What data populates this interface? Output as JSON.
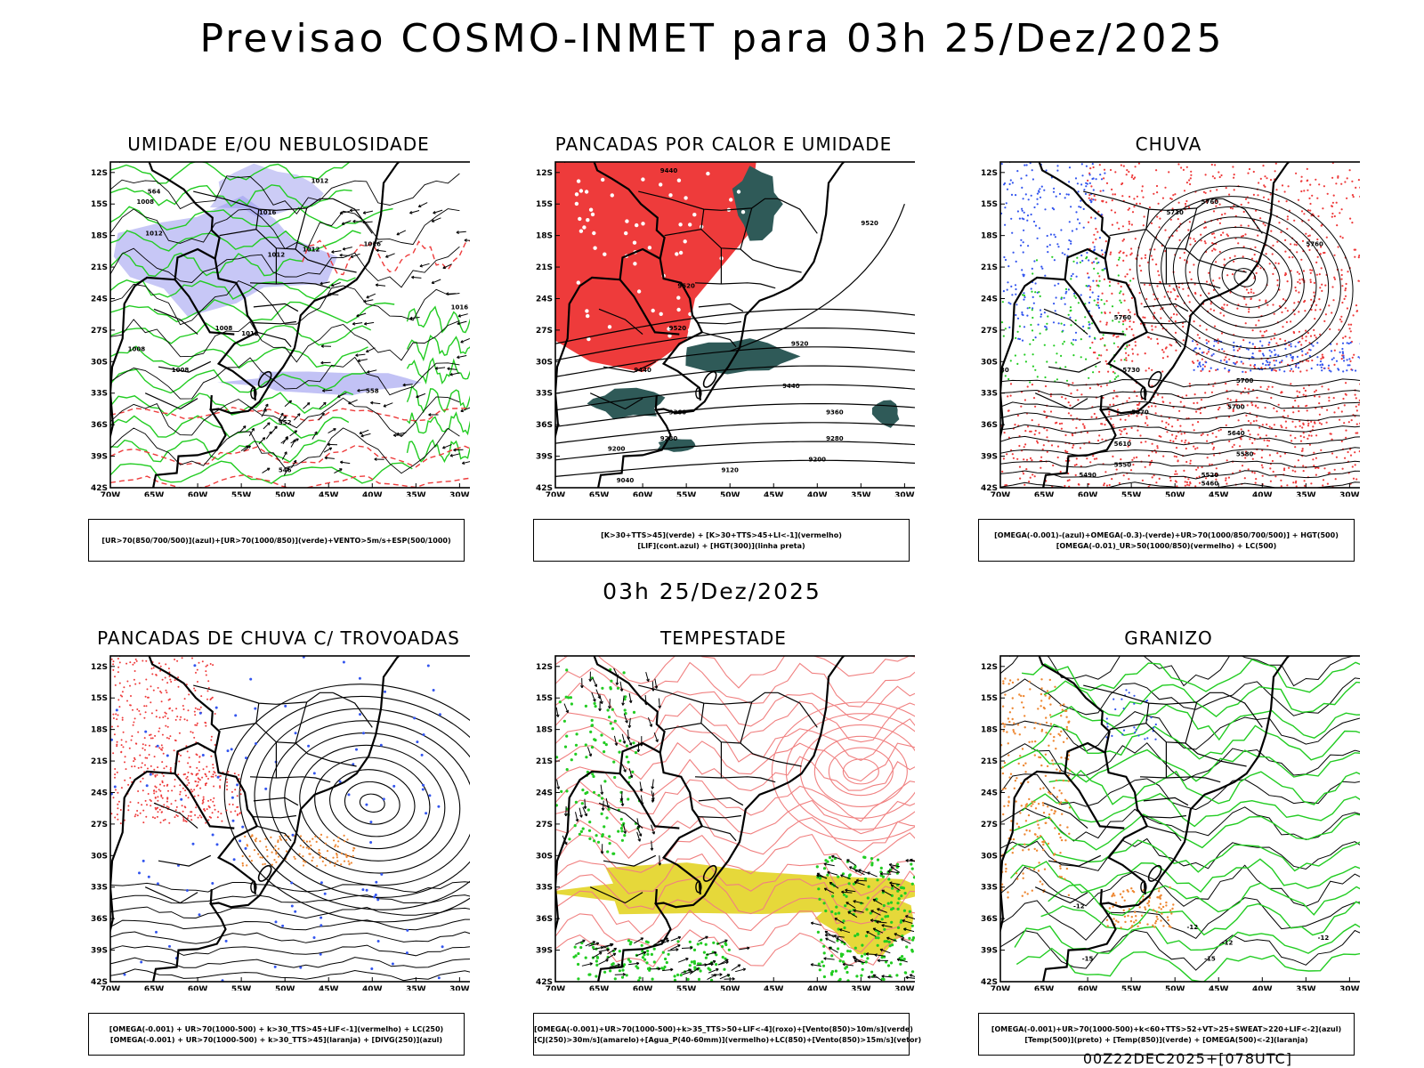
{
  "header": {
    "title": "Previsao COSMO-INMET  para 03h 25/Dez/2025",
    "mid_date": "03h 25/Dez/2025",
    "footer": "00Z22DEC2025+[078UTC]"
  },
  "axes": {
    "lat_labels": [
      "12S",
      "15S",
      "18S",
      "21S",
      "24S",
      "27S",
      "30S",
      "33S",
      "36S",
      "39S",
      "42S"
    ],
    "lon_labels": [
      "70W",
      "65W",
      "60W",
      "55W",
      "50W",
      "45W",
      "40W",
      "35W",
      "30W"
    ]
  },
  "colors": {
    "red": "#ee3b3b",
    "green": "#22cc22",
    "blue": "#3355ee",
    "lavender": "#9999ee",
    "darkteal": "#2f5a58",
    "yellow": "#e6d83a",
    "orange": "#ee8833",
    "pink": "#f08080"
  },
  "panels": [
    {
      "id": "umidade",
      "title": "UMIDADE E/OU NEBULOSIDADE",
      "legend": [
        "[UR>70(850/700/500)](azul)+[UR>70(1000/850)](verde)+VENTO>5m/s+ESP(500/1000)"
      ],
      "contour_labels": [
        "1012",
        "1008",
        "1012",
        "1016",
        "1012",
        "1008",
        "1016",
        "1012",
        "1008",
        "1008",
        "1012",
        "1016",
        "564",
        "558",
        "552",
        "546"
      ]
    },
    {
      "id": "pancadas-calor",
      "title": "PANCADAS POR CALOR E UMIDADE",
      "legend": [
        "[K>30+TTS>45](verde) + [K>30+TTS>45+LI<-1](vermelho)",
        "[LIF](cont.azul) + [HGT(300)](linha preta)"
      ],
      "contour_labels": [
        "9440",
        "9520",
        "9520",
        "9520",
        "9520",
        "9440",
        "9440",
        "9360",
        "9360",
        "9280",
        "9280",
        "9200",
        "9200",
        "9120",
        "9040"
      ]
    },
    {
      "id": "chuva",
      "title": "CHUVA",
      "legend": [
        "[OMEGA(-0.001)-(azul)+OMEGA(-0.3)-(verde)+UR>70(1000/850/700/500)] + HGT(500)",
        "[OMEGA(-0.01)_UR>50(1000/850)(vermelho) + LC(500)"
      ],
      "contour_labels": [
        "5730",
        "5760",
        "5760",
        "5760",
        "5730",
        "5730",
        "5700",
        "5700",
        "5670",
        "5640",
        "5610",
        "5580",
        "5550",
        "5520",
        "5490",
        "5460"
      ]
    },
    {
      "id": "trovoadas",
      "title": "PANCADAS DE CHUVA C/ TROVOADAS",
      "legend": [
        "[OMEGA(-0.001) + UR>70(1000-500) + k>30_TTS>45+LIF<-1](vermelho) + LC(250)",
        "[OMEGA(-0.001) + UR>70(1000-500) + k>30_TTS>45](laranja) + [DIVG(250)](azul)"
      ],
      "contour_labels": []
    },
    {
      "id": "tempestade",
      "title": "TEMPESTADE",
      "legend": [
        "[OMEGA(-0.001)+UR>70(1000-500)+k>35_TTS>50+LIF<-4](roxo)+[Vento(850)>10m/s](verde)",
        "[CJ(250)>30m/s](amarelo)+[Agua_P(40-60mm)](vermelho)+LC(850)+[Vento(850)>15m/s](vetor)"
      ],
      "contour_labels": []
    },
    {
      "id": "granizo",
      "title": "GRANIZO",
      "legend": [
        "[OMEGA(-0.001)+UR>70(1000-500)+k<60+TTS>52+VT>25+SWEAT>220+LIF<-2](azul)",
        "[Temp(500)](preto) + [Temp(850)](verde) + [OMEGA(500)<-2](laranja)"
      ],
      "contour_labels": [
        "-12",
        "-12",
        "-12",
        "-12",
        "-15",
        "-15"
      ]
    }
  ]
}
